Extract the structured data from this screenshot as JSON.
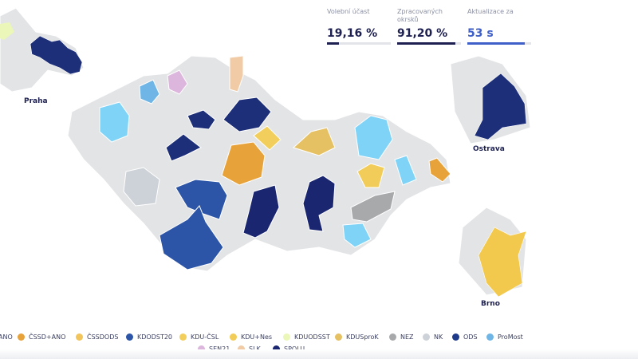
{
  "stats": [
    {
      "label": "Volební účast",
      "value": "19,16 %",
      "progress": 19.16,
      "color": "#1d2050"
    },
    {
      "label": "Zpracovaných okrsků",
      "value": "91,20 %",
      "progress": 91.2,
      "color": "#1d2050"
    },
    {
      "label": "Aktualizace za",
      "value": "53 s",
      "progress": 90,
      "color": "#3f5fc9"
    }
  ],
  "cities": {
    "praha": "Praha",
    "ostrava": "Ostrava",
    "brno": "Brno"
  },
  "colors": {
    "base": "#e3e4e6",
    "ODS": "#1e2f7a",
    "SPOLU": "#1a2670",
    "KDODST20": "#2c55a8",
    "ProMost": "#7fd3f7",
    "NEZ": "#a8a9ab",
    "NK": "#cdd1d8",
    "CSSD+ANO": "#e8a23a",
    "KDU": "#f2c94c",
    "KDUSproK": "#e6c164",
    "SEN21": "#dcb6dc",
    "SLK": "#f0cba6",
    "KDUODSST": "#eaf7b8"
  },
  "legend": [
    {
      "label": "ANO",
      "color": "#5ab0e0"
    },
    {
      "label": "ČSSD+ANO",
      "color": "#e8a23a"
    },
    {
      "label": "ČSSDODS",
      "color": "#f2c55c"
    },
    {
      "label": "KDODST20",
      "color": "#2c55a8"
    },
    {
      "label": "KDU-ČSL",
      "color": "#f2cf5c"
    },
    {
      "label": "KDU+Nes",
      "color": "#f2cc58"
    },
    {
      "label": "KDUODSST",
      "color": "#eaf7b8"
    },
    {
      "label": "KDUSproK",
      "color": "#e6c164"
    },
    {
      "label": "NEZ",
      "color": "#a8a9ab"
    },
    {
      "label": "NK",
      "color": "#cdd1d8"
    },
    {
      "label": "ODS",
      "color": "#1e3a8a"
    },
    {
      "label": "ProMost",
      "color": "#6fb6e6"
    },
    {
      "label": "SEN21",
      "color": "#dcb6dc"
    },
    {
      "label": "SLK",
      "color": "#f0cba6"
    },
    {
      "label": "SPOLU",
      "color": "#1a2670"
    }
  ]
}
